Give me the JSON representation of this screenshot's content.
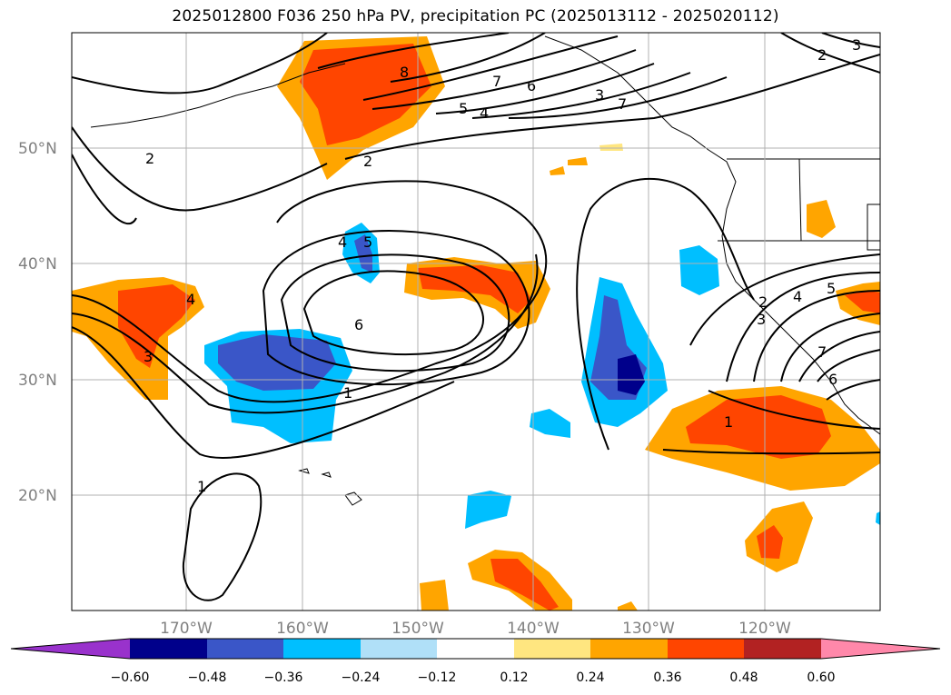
{
  "title": "2025012800 F036 250 hPa PV, precipitation PC (2025013112 - 2025020112)",
  "map": {
    "lat_labels": [
      "50°N",
      "40°N",
      "30°N",
      "20°N"
    ],
    "lon_labels": [
      "170°W",
      "160°W",
      "150°W",
      "140°W",
      "130°W",
      "120°W"
    ],
    "contour_labels": [
      "2",
      "8",
      "7",
      "6",
      "5",
      "4",
      "3",
      "7",
      "2",
      "3",
      "2",
      "4",
      "5",
      "6",
      "4",
      "3",
      "1",
      "1",
      "1",
      "2",
      "3",
      "4",
      "5",
      "7",
      "6"
    ]
  },
  "colorbar": {
    "ticks": [
      "−0.60",
      "−0.48",
      "−0.36",
      "−0.24",
      "−0.12",
      "0.12",
      "0.24",
      "0.36",
      "0.48",
      "0.60"
    ],
    "colors": [
      "#9932cc",
      "#00008b",
      "#3a56c8",
      "#00bfff",
      "#b0e0f8",
      "#ffffff",
      "#ffe680",
      "#ffa500",
      "#ff4500",
      "#b22222",
      "#ff88aa"
    ]
  }
}
